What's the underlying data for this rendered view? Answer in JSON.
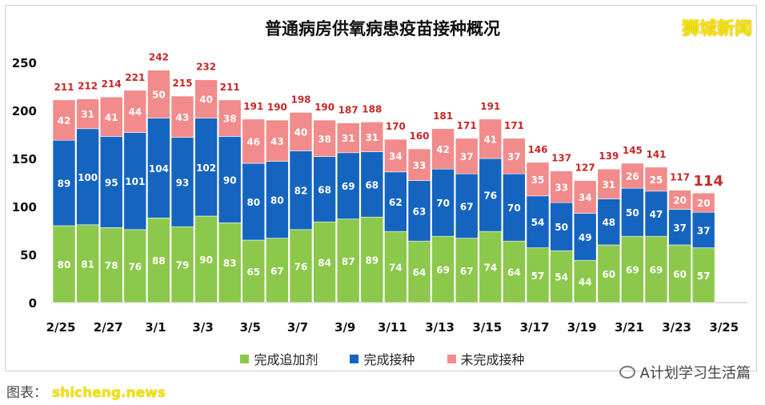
{
  "title": "普通病房供氧病患疫苗接种概况",
  "brand": "狮城新闻",
  "footer": {
    "left": "图表：",
    "watermark": "shicheng.news",
    "right": "A计划学习生活篇"
  },
  "icons": {
    "wechat": "wechat-icon"
  },
  "colors": {
    "booster": "#8cc84b",
    "full": "#1565c0",
    "unvaccinated": "#f28b8b",
    "total_label": "#c62828"
  },
  "chart_data": {
    "type": "bar",
    "stacked": true,
    "title": "普通病房供氧病患疫苗接种概况",
    "categories": [
      "2/25",
      "2/26",
      "2/27",
      "2/28",
      "3/1",
      "3/2",
      "3/3",
      "3/4",
      "3/5",
      "3/6",
      "3/7",
      "3/8",
      "3/9",
      "3/10",
      "3/11",
      "3/12",
      "3/13",
      "3/14",
      "3/15",
      "3/16",
      "3/17",
      "3/18",
      "3/19",
      "3/20",
      "3/21",
      "3/22",
      "3/23",
      "3/24"
    ],
    "x_tick_labels": [
      "2/25",
      "2/27",
      "3/1",
      "3/3",
      "3/5",
      "3/7",
      "3/9",
      "3/11",
      "3/13",
      "3/15",
      "3/17",
      "3/19",
      "3/21",
      "3/23",
      "3/25"
    ],
    "series": [
      {
        "name": "完成追加剂",
        "color": "#8cc84b",
        "values": [
          80,
          81,
          78,
          76,
          88,
          79,
          90,
          83,
          65,
          67,
          76,
          84,
          87,
          89,
          74,
          64,
          69,
          67,
          74,
          64,
          57,
          54,
          44,
          60,
          69,
          69,
          60,
          57
        ]
      },
      {
        "name": "完成接种",
        "color": "#1565c0",
        "values": [
          89,
          100,
          95,
          101,
          104,
          93,
          102,
          90,
          80,
          80,
          82,
          68,
          69,
          68,
          62,
          63,
          70,
          67,
          76,
          70,
          54,
          50,
          49,
          48,
          50,
          47,
          37,
          37
        ]
      },
      {
        "name": "未完成接种",
        "color": "#f28b8b",
        "values": [
          42,
          31,
          41,
          44,
          50,
          43,
          40,
          38,
          46,
          43,
          40,
          38,
          31,
          31,
          34,
          33,
          42,
          37,
          41,
          37,
          35,
          33,
          34,
          31,
          26,
          25,
          20,
          20
        ]
      }
    ],
    "totals": [
      211,
      212,
      214,
      221,
      242,
      215,
      232,
      211,
      191,
      190,
      198,
      190,
      187,
      188,
      170,
      160,
      181,
      171,
      191,
      171,
      146,
      137,
      127,
      139,
      145,
      141,
      117,
      114
    ],
    "y_ticks": [
      0,
      50,
      100,
      150,
      200,
      250
    ],
    "ylim": [
      0,
      250
    ],
    "legend_position": "bottom",
    "grid": false
  }
}
